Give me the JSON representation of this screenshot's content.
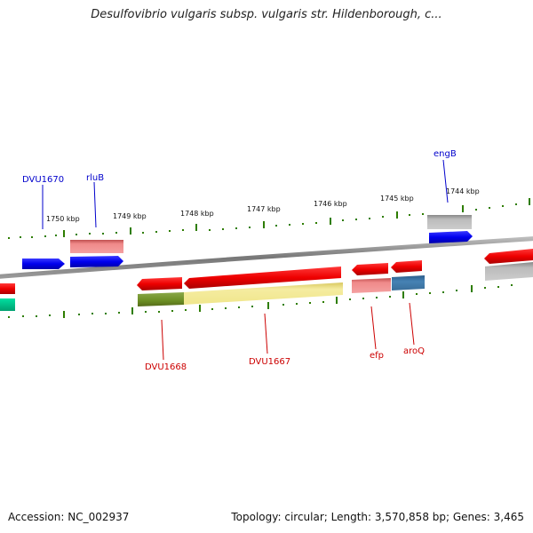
{
  "title": "Desulfovibrio vulgaris subsp. vulgaris str. Hildenborough, c...",
  "footer": {
    "accession": "Accession: NC_002937",
    "summary": "Topology: circular; Length: 3,570,858 bp; Genes: 3,465"
  },
  "scale": {
    "tick_labels": [
      "1750 kbp",
      "1749 kbp",
      "1748 kbp",
      "1747 kbp",
      "1746 kbp",
      "1745 kbp",
      "1744 kbp"
    ]
  },
  "genes": {
    "upper_labels": [
      "DVU1670",
      "rluB",
      "engB"
    ],
    "lower_labels": [
      "DVU1668",
      "DVU1667",
      "efp",
      "aroQ"
    ]
  },
  "colors": {
    "forward_strand_label": "#0000cc",
    "reverse_strand_label": "#cc0000",
    "tick": "#2e7d00",
    "backbone": "#888888"
  }
}
